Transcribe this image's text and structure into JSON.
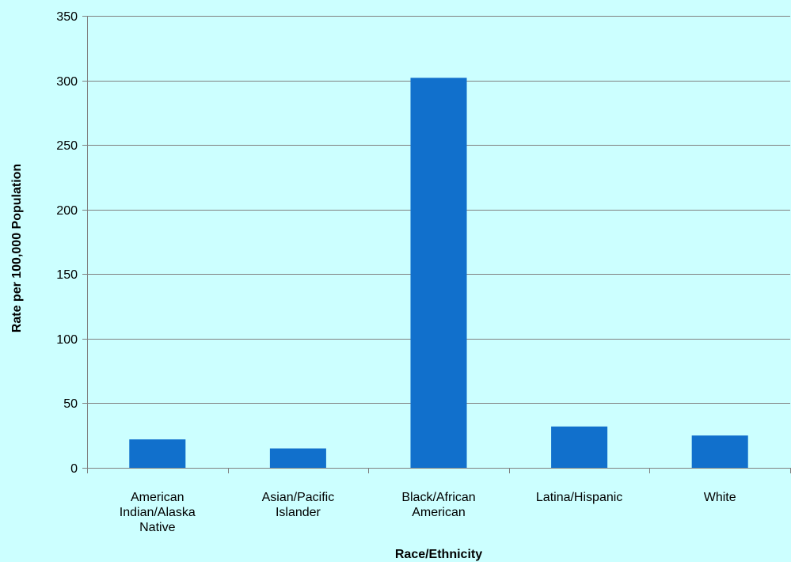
{
  "chart_data": {
    "type": "bar",
    "title": "",
    "xlabel": "Race/Ethnicity",
    "ylabel": "Rate per 100,000 Population",
    "categories": [
      "American Indian/Alaska Native",
      "Asian/Pacific Islander",
      "Black/African American",
      "Latina/Hispanic",
      "White"
    ],
    "category_lines": [
      [
        "American",
        "Indian/Alaska",
        "Native"
      ],
      [
        "Asian/Pacific",
        "Islander"
      ],
      [
        "Black/African",
        "American"
      ],
      [
        "Latina/Hispanic"
      ],
      [
        "White"
      ]
    ],
    "values": [
      22,
      15,
      302,
      32,
      25
    ],
    "ylim": [
      0,
      350
    ],
    "yticks": [
      0,
      50,
      100,
      150,
      200,
      250,
      300,
      350
    ],
    "grid": true,
    "legend": "none"
  },
  "colors": {
    "background": "#ccffff",
    "bar": "#1170cc",
    "axis": "#808080",
    "grid": "#808080"
  }
}
